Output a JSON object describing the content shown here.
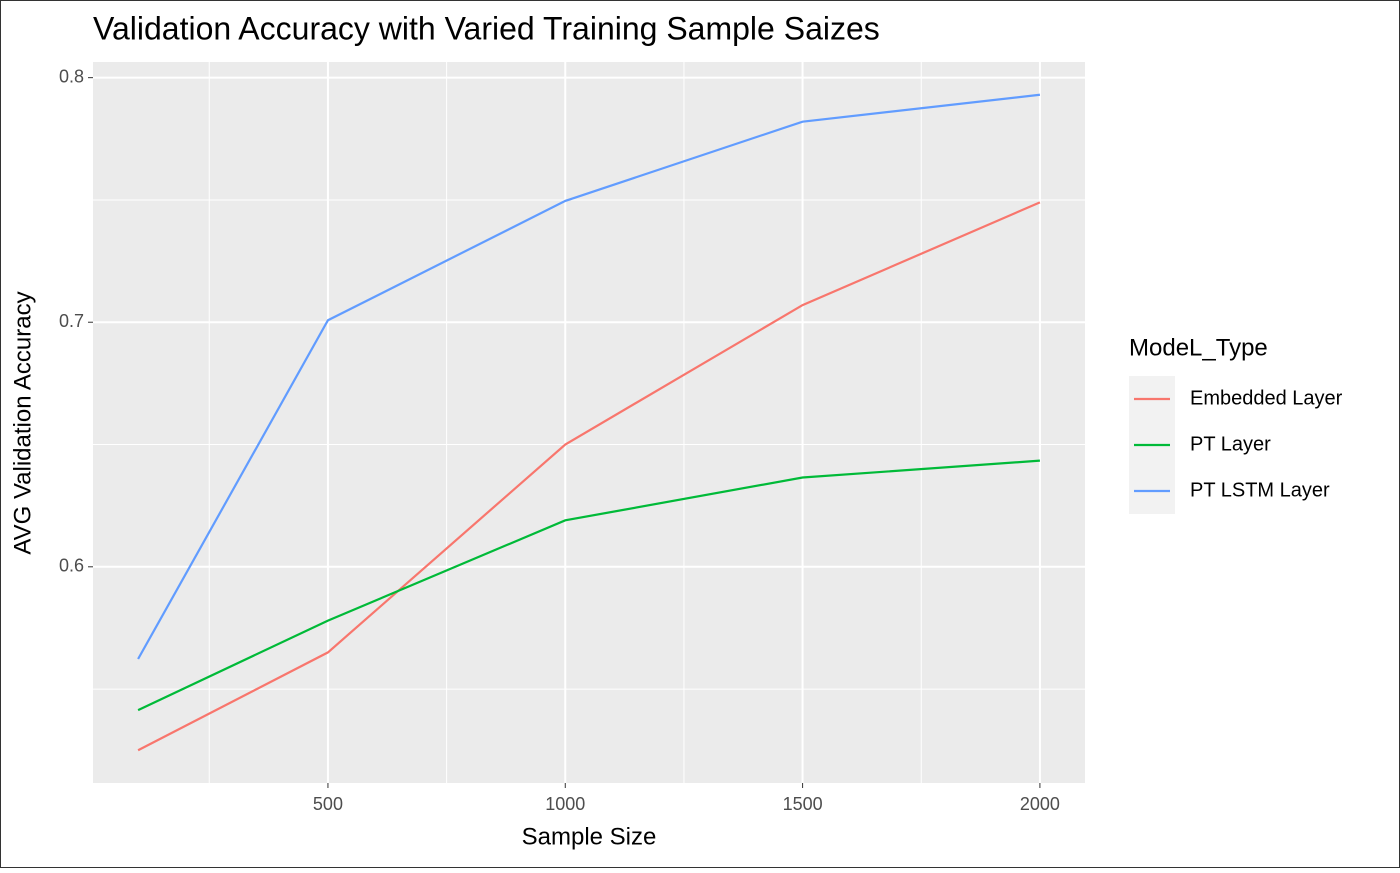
{
  "chart_data": {
    "type": "line",
    "title": "Validation Accuracy with Varied Training Sample Saizes",
    "x_label": "Sample Size",
    "y_label": "AVG Validation Accuracy",
    "legend_title": "ModeL_Type",
    "x": [
      100,
      500,
      1000,
      1500,
      2000
    ],
    "series": [
      {
        "name": "Embedded Layer",
        "color": "#f8766d",
        "values": [
          0.525,
          0.565,
          0.65,
          0.707,
          0.749
        ]
      },
      {
        "name": "PT Layer",
        "color": "#00ba38",
        "values": [
          0.5414,
          0.578,
          0.619,
          0.6365,
          0.6434
        ]
      },
      {
        "name": "PT LSTM Layer",
        "color": "#619cff",
        "values": [
          0.5623,
          0.7008,
          0.7496,
          0.782,
          0.793
        ]
      }
    ],
    "xlim": [
      5,
      2095
    ],
    "ylim": [
      0.5116,
      0.8064
    ],
    "xticks": [
      500,
      1000,
      1500,
      2000
    ],
    "yticks": [
      0.6,
      0.7,
      0.8
    ],
    "x_minor_grid": [
      250,
      750,
      1250,
      1750
    ],
    "y_minor_grid": [
      0.55,
      0.65,
      0.75
    ],
    "grid": true
  }
}
